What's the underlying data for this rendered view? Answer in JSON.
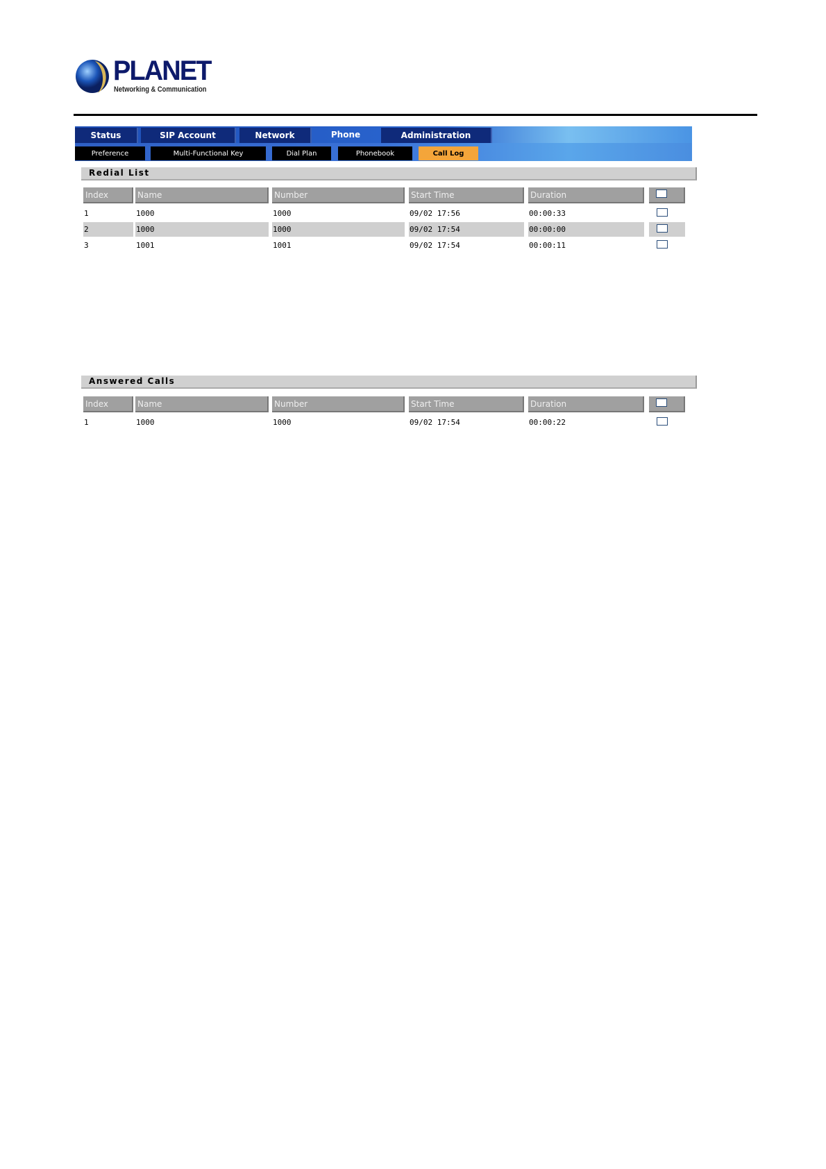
{
  "brand": {
    "name": "PLANET",
    "tagline": "Networking & Communication"
  },
  "nav": {
    "tabs": [
      {
        "label": "Status",
        "active": false
      },
      {
        "label": "SIP Account",
        "active": false
      },
      {
        "label": "Network",
        "active": false
      },
      {
        "label": "Phone",
        "active": true
      },
      {
        "label": "Administration",
        "active": false
      }
    ],
    "subtabs": [
      {
        "label": "Preference",
        "active": false
      },
      {
        "label": "Multi-Functional Key",
        "active": false
      },
      {
        "label": "Dial Plan",
        "active": false
      },
      {
        "label": "Phonebook",
        "active": false
      },
      {
        "label": "Call Log",
        "active": true
      }
    ]
  },
  "columns": [
    "Index",
    "Name",
    "Number",
    "Start Time",
    "Duration"
  ],
  "redial": {
    "title": "Redial List",
    "rows": [
      [
        "1",
        "1000",
        "1000",
        "09/02 17:56",
        "00:00:33"
      ],
      [
        "2",
        "1000",
        "1000",
        "09/02 17:54",
        "00:00:00"
      ],
      [
        "3",
        "1001",
        "1001",
        "09/02 17:54",
        "00:00:11"
      ]
    ]
  },
  "answered": {
    "title": "Answered Calls",
    "rows": [
      [
        "1",
        "1000",
        "1000",
        "09/02 17:54",
        "00:00:22"
      ]
    ]
  },
  "colors": {
    "nav_tab": "#0f2a7a",
    "active_subtab": "#f4a53a",
    "header_cell": "#a0a0a0"
  }
}
